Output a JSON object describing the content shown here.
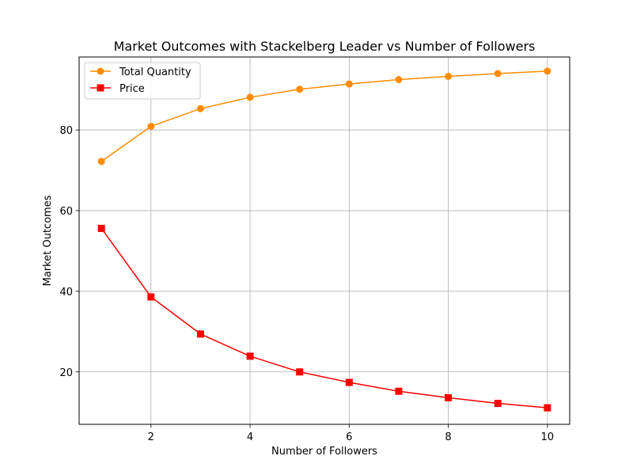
{
  "chart_data": {
    "type": "line",
    "title": "Market Outcomes with Stackelberg Leader vs Number of Followers",
    "xlabel": "Number of Followers",
    "ylabel": "Market Outcomes",
    "x": [
      1,
      2,
      3,
      4,
      5,
      6,
      7,
      8,
      9,
      10
    ],
    "xlim": [
      0.55,
      10.45
    ],
    "ylim": [
      7.0,
      98.1
    ],
    "xticks": [
      2,
      4,
      6,
      8,
      10
    ],
    "yticks": [
      20,
      40,
      60,
      80
    ],
    "grid": true,
    "legend_position": "top-left",
    "series": [
      {
        "name": "Total Quantity",
        "color": "#ff8c00",
        "marker": "circle",
        "values": [
          72.2,
          80.9,
          85.3,
          88.1,
          90.1,
          91.4,
          92.5,
          93.3,
          94.0,
          94.6
        ]
      },
      {
        "name": "Price",
        "color": "#ff0000",
        "marker": "square",
        "values": [
          55.6,
          38.6,
          29.4,
          23.9,
          20.0,
          17.4,
          15.2,
          13.6,
          12.2,
          11.1
        ]
      }
    ]
  }
}
